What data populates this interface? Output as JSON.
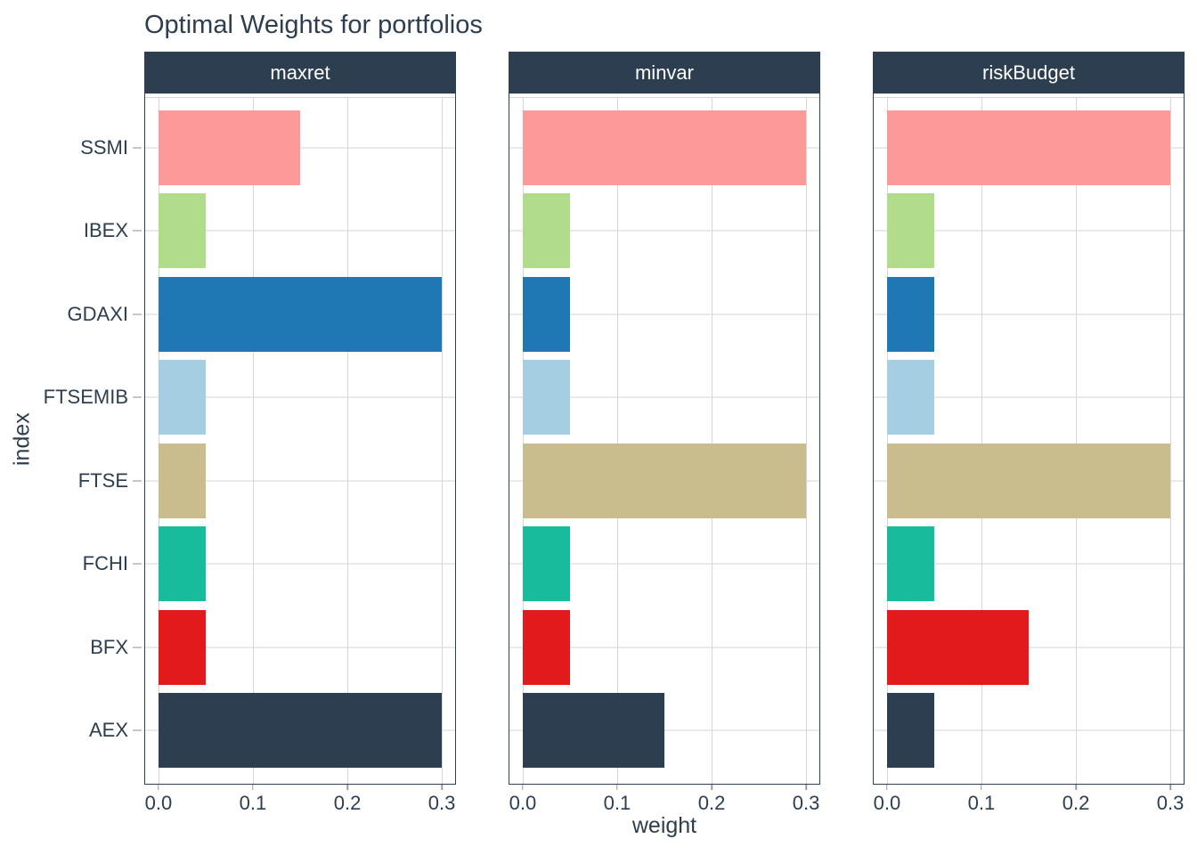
{
  "chart_data": {
    "type": "bar",
    "orientation": "horizontal",
    "title": "Optimal Weights for portfolios",
    "xlabel": "weight",
    "ylabel": "index",
    "legend": "none",
    "grid": true,
    "categories_top_to_bottom": [
      "SSMI",
      "IBEX",
      "GDAXI",
      "FTSEMIB",
      "FTSE",
      "FCHI",
      "BFX",
      "AEX"
    ],
    "facets": [
      {
        "label": "maxret",
        "values": [
          0.15,
          0.05,
          0.3,
          0.05,
          0.05,
          0.05,
          0.05,
          0.3
        ]
      },
      {
        "label": "minvar",
        "values": [
          0.3,
          0.05,
          0.05,
          0.05,
          0.3,
          0.05,
          0.05,
          0.15
        ]
      },
      {
        "label": "riskBudget",
        "values": [
          0.3,
          0.05,
          0.05,
          0.05,
          0.3,
          0.05,
          0.15,
          0.05
        ]
      }
    ],
    "x_ticks": [
      "0.0",
      "0.1",
      "0.2",
      "0.3"
    ],
    "x_tick_values": [
      0.0,
      0.1,
      0.2,
      0.3
    ],
    "xlim": [
      0,
      0.3
    ],
    "bar_colors_by_category": {
      "SSMI": "#FC9A99",
      "IBEX": "#B0DC8C",
      "GDAXI": "#1F78B4",
      "FTSEMIB": "#A6CEE3",
      "FTSE": "#C9BC8D",
      "FCHI": "#18BC9C",
      "BFX": "#E31A1C",
      "AEX": "#2C3E50"
    }
  },
  "style": {
    "strip_background": "#2C3E50",
    "strip_text_color": "#FFFFFF",
    "text_color": "#2C3E50",
    "grid_color": "#D6D6D6",
    "panel_border_color": "#2C3E50",
    "background": "#FFFFFF"
  }
}
